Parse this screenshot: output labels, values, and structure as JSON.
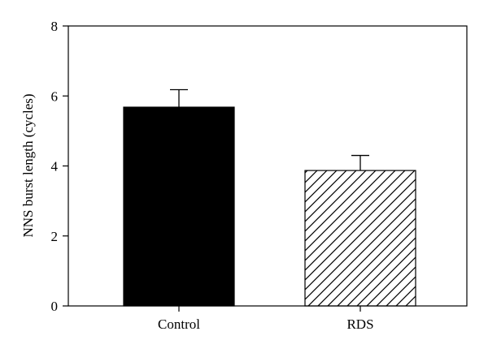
{
  "chart_data": {
    "type": "bar",
    "title": "",
    "xlabel": "",
    "ylabel": "NNS burst length (cycles)",
    "categories": [
      "Control",
      "RDS"
    ],
    "values": [
      5.68,
      3.87
    ],
    "error_upper": [
      6.18,
      4.3
    ],
    "ylim": [
      0,
      8
    ],
    "yticks": [
      0,
      2,
      4,
      6,
      8
    ],
    "grid": false,
    "bar_styles": [
      {
        "fill": "solid",
        "color": "#000000"
      },
      {
        "fill": "diagonal-hatch",
        "color": "#000000"
      }
    ]
  }
}
